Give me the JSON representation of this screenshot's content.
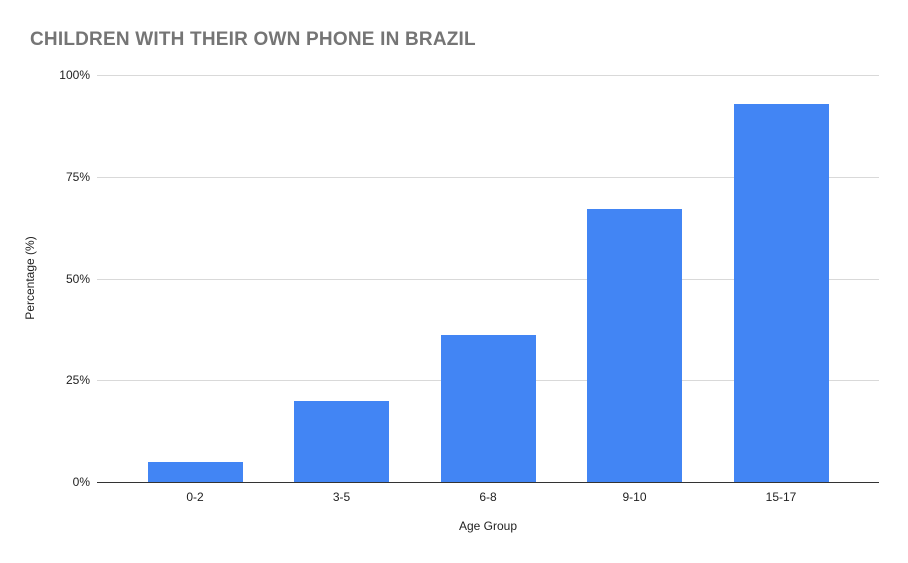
{
  "page": {
    "background": "#ffffff"
  },
  "chart_data": {
    "type": "bar",
    "title": "CHILDREN WITH THEIR OWN PHONE IN BRAZIL",
    "categories": [
      "0-2",
      "3-5",
      "6-8",
      "9-10",
      "15-17"
    ],
    "values": [
      5,
      20,
      36,
      67,
      93
    ],
    "xlabel": "Age Group",
    "ylabel": "Percentage (%)",
    "ylim": [
      0,
      100
    ],
    "ytick_values": [
      0,
      25,
      50,
      75,
      100
    ],
    "ytick_labels": [
      "0%",
      "25%",
      "50%",
      "75%",
      "100%"
    ],
    "grid": true,
    "legend_position": "none",
    "bar_color": "#4285f4",
    "title_color": "#757575",
    "axis_text_color": "#222222",
    "gridline_color": "#d9d9d9",
    "axis_line_color": "#333333"
  }
}
